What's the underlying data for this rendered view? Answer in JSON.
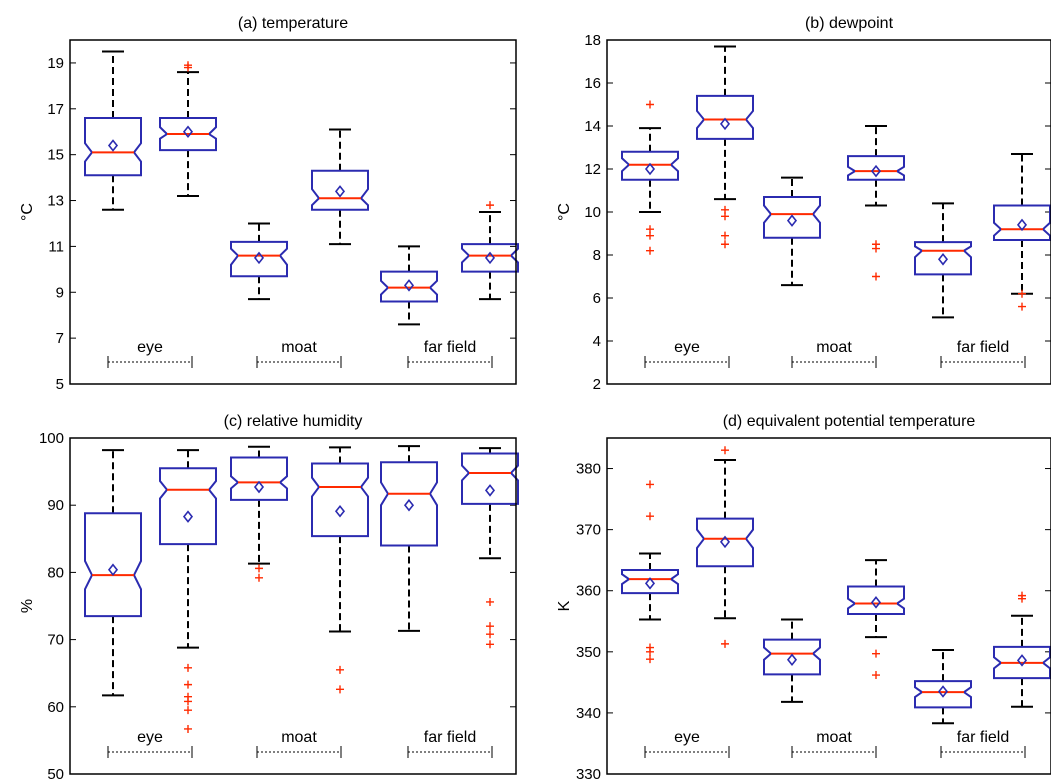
{
  "figure": {
    "style": {
      "box_color": "#2b2bb0",
      "median_color": "#ff2a00",
      "whisker_color": "#000000",
      "outlier_color": "#ff2a00",
      "mean_marker_color": "#2b2bb0",
      "axis_color": "#000000"
    }
  },
  "chart_data": [
    {
      "type": "boxplot",
      "title": "(a)  temperature",
      "ylabel": "°C",
      "ylim": [
        5,
        20
      ],
      "yticks": [
        5,
        7,
        9,
        11,
        13,
        15,
        17,
        19
      ],
      "groups": [
        "eye",
        "moat",
        "far field"
      ],
      "boxes": [
        {
          "group": "eye",
          "whisker_low": 12.6,
          "q1": 14.1,
          "median": 15.1,
          "q3": 16.6,
          "whisker_high": 19.5,
          "mean": 15.4,
          "notch_low": 14.7,
          "notch_high": 15.5,
          "outliers": []
        },
        {
          "group": "eye",
          "whisker_low": 13.2,
          "q1": 15.2,
          "median": 15.9,
          "q3": 16.6,
          "whisker_high": 18.6,
          "mean": 16.0,
          "notch_low": 15.7,
          "notch_high": 16.2,
          "outliers": [
            18.8,
            18.9
          ]
        },
        {
          "group": "moat",
          "whisker_low": 8.7,
          "q1": 9.7,
          "median": 10.6,
          "q3": 11.2,
          "whisker_high": 12.0,
          "mean": 10.5,
          "notch_low": 10.2,
          "notch_high": 10.9,
          "outliers": []
        },
        {
          "group": "moat",
          "whisker_low": 11.1,
          "q1": 12.6,
          "median": 13.1,
          "q3": 14.3,
          "whisker_high": 16.1,
          "mean": 13.4,
          "notch_low": 12.8,
          "notch_high": 13.5,
          "outliers": []
        },
        {
          "group": "far field",
          "whisker_low": 7.6,
          "q1": 8.6,
          "median": 9.2,
          "q3": 9.9,
          "whisker_high": 11.0,
          "mean": 9.3,
          "notch_low": 8.9,
          "notch_high": 9.5,
          "outliers": []
        },
        {
          "group": "far field",
          "whisker_low": 8.7,
          "q1": 9.9,
          "median": 10.6,
          "q3": 11.1,
          "whisker_high": 12.5,
          "mean": 10.5,
          "notch_low": 10.3,
          "notch_high": 10.9,
          "outliers": [
            12.8
          ]
        }
      ]
    },
    {
      "type": "boxplot",
      "title": "(b)  dewpoint",
      "ylabel": "°C",
      "ylim": [
        2,
        18
      ],
      "yticks": [
        2,
        4,
        6,
        8,
        10,
        12,
        14,
        16,
        18
      ],
      "groups": [
        "eye",
        "moat",
        "far field"
      ],
      "boxes": [
        {
          "group": "eye",
          "whisker_low": 10.0,
          "q1": 11.5,
          "median": 12.2,
          "q3": 12.8,
          "whisker_high": 13.9,
          "mean": 12.0,
          "notch_low": 11.9,
          "notch_high": 12.5,
          "outliers": [
            15.0,
            9.2,
            8.9,
            8.2
          ]
        },
        {
          "group": "eye",
          "whisker_low": 10.6,
          "q1": 13.4,
          "median": 14.3,
          "q3": 15.4,
          "whisker_high": 17.7,
          "mean": 14.1,
          "notch_low": 13.9,
          "notch_high": 14.7,
          "outliers": [
            10.1,
            9.8,
            8.9,
            8.5
          ]
        },
        {
          "group": "moat",
          "whisker_low": 6.6,
          "q1": 8.8,
          "median": 9.9,
          "q3": 10.7,
          "whisker_high": 11.6,
          "mean": 9.6,
          "notch_low": 9.5,
          "notch_high": 10.3,
          "outliers": []
        },
        {
          "group": "moat",
          "whisker_low": 10.3,
          "q1": 11.5,
          "median": 11.9,
          "q3": 12.6,
          "whisker_high": 14.0,
          "mean": 11.9,
          "notch_low": 11.7,
          "notch_high": 12.1,
          "outliers": [
            8.5,
            8.3,
            7.0
          ]
        },
        {
          "group": "far field",
          "whisker_low": 5.1,
          "q1": 7.1,
          "median": 8.2,
          "q3": 8.6,
          "whisker_high": 10.4,
          "mean": 7.8,
          "notch_low": 7.9,
          "notch_high": 8.4,
          "outliers": []
        },
        {
          "group": "far field",
          "whisker_low": 6.2,
          "q1": 8.7,
          "median": 9.2,
          "q3": 10.3,
          "whisker_high": 12.7,
          "mean": 9.4,
          "notch_low": 8.9,
          "notch_high": 9.5,
          "outliers": [
            6.2,
            5.6
          ]
        }
      ]
    },
    {
      "type": "boxplot",
      "title": "(c)  relative humidity",
      "ylabel": "%",
      "ylim": [
        50,
        100
      ],
      "yticks": [
        50,
        60,
        70,
        80,
        90,
        100
      ],
      "groups": [
        "eye",
        "moat",
        "far field"
      ],
      "boxes": [
        {
          "group": "eye",
          "whisker_low": 61.7,
          "q1": 73.5,
          "median": 79.6,
          "q3": 88.8,
          "whisker_high": 98.2,
          "mean": 80.4,
          "notch_low": 77.5,
          "notch_high": 81.7,
          "outliers": []
        },
        {
          "group": "eye",
          "whisker_low": 68.8,
          "q1": 84.2,
          "median": 92.3,
          "q3": 95.5,
          "whisker_high": 98.2,
          "mean": 88.3,
          "notch_low": 91.0,
          "notch_high": 93.6,
          "outliers": [
            65.8,
            63.3,
            61.5,
            60.8,
            59.5,
            56.7
          ]
        },
        {
          "group": "moat",
          "whisker_low": 81.3,
          "q1": 90.8,
          "median": 93.4,
          "q3": 97.1,
          "whisker_high": 98.7,
          "mean": 92.7,
          "notch_low": 92.5,
          "notch_high": 94.3,
          "outliers": [
            80.6,
            79.2
          ]
        },
        {
          "group": "moat",
          "whisker_low": 71.2,
          "q1": 85.4,
          "median": 92.7,
          "q3": 96.2,
          "whisker_high": 98.6,
          "mean": 89.1,
          "notch_low": 91.3,
          "notch_high": 94.1,
          "outliers": [
            65.5,
            62.6
          ]
        },
        {
          "group": "far field",
          "whisker_low": 71.3,
          "q1": 84.0,
          "median": 91.7,
          "q3": 96.4,
          "whisker_high": 98.8,
          "mean": 90.0,
          "notch_low": 90.0,
          "notch_high": 93.4,
          "outliers": []
        },
        {
          "group": "far field",
          "whisker_low": 82.1,
          "q1": 90.2,
          "median": 94.8,
          "q3": 97.7,
          "whisker_high": 98.5,
          "mean": 92.2,
          "notch_low": 93.7,
          "notch_high": 95.9,
          "outliers": [
            75.6,
            72.0,
            70.8,
            69.3
          ]
        }
      ]
    },
    {
      "type": "boxplot",
      "title": "(d)  equivalent potential temperature",
      "ylabel": "K",
      "ylim": [
        330,
        385
      ],
      "yticks": [
        330,
        340,
        350,
        360,
        370,
        380
      ],
      "groups": [
        "eye",
        "moat",
        "far field"
      ],
      "boxes": [
        {
          "group": "eye",
          "whisker_low": 355.3,
          "q1": 359.6,
          "median": 361.9,
          "q3": 363.4,
          "whisker_high": 366.1,
          "mean": 361.2,
          "notch_low": 361.1,
          "notch_high": 362.7,
          "outliers": [
            377.4,
            372.2,
            350.7,
            350.0,
            348.8
          ]
        },
        {
          "group": "eye",
          "whisker_low": 355.5,
          "q1": 364.0,
          "median": 368.5,
          "q3": 371.8,
          "whisker_high": 381.4,
          "mean": 368.0,
          "notch_low": 367.0,
          "notch_high": 370.0,
          "outliers": [
            383.0,
            351.3
          ]
        },
        {
          "group": "moat",
          "whisker_low": 341.8,
          "q1": 346.3,
          "median": 349.7,
          "q3": 352.0,
          "whisker_high": 355.3,
          "mean": 348.7,
          "notch_low": 348.7,
          "notch_high": 350.7,
          "outliers": []
        },
        {
          "group": "moat",
          "whisker_low": 352.4,
          "q1": 356.2,
          "median": 357.9,
          "q3": 360.7,
          "whisker_high": 365.0,
          "mean": 358.1,
          "notch_low": 357.1,
          "notch_high": 358.7,
          "outliers": [
            349.7,
            346.2
          ]
        },
        {
          "group": "far field",
          "whisker_low": 338.3,
          "q1": 340.9,
          "median": 343.4,
          "q3": 345.2,
          "whisker_high": 350.3,
          "mean": 343.5,
          "notch_low": 342.6,
          "notch_high": 344.2,
          "outliers": []
        },
        {
          "group": "far field",
          "whisker_low": 341.0,
          "q1": 345.7,
          "median": 348.2,
          "q3": 350.8,
          "whisker_high": 355.9,
          "mean": 348.6,
          "notch_low": 347.3,
          "notch_high": 349.1,
          "outliers": [
            359.2,
            358.7
          ]
        }
      ]
    }
  ]
}
